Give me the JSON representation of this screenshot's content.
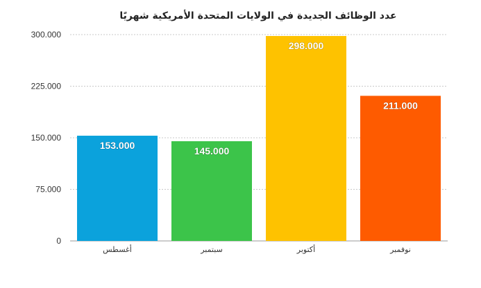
{
  "chart_data": {
    "type": "bar",
    "title": "عدد الوظائف الجديدة في الولايات المتحدة الأمريكية شهريًا",
    "xlabel": "",
    "ylabel": "",
    "categories": [
      "أغسطس",
      "سبتمبر",
      "أكتوبر",
      "نوفمبر"
    ],
    "values": [
      153000,
      145000,
      298000,
      211000
    ],
    "value_labels": [
      "153.000",
      "145.000",
      "298.000",
      "211.000"
    ],
    "colors": [
      "#0ba2dc",
      "#3cc44a",
      "#fec200",
      "#fe5b00"
    ],
    "ylim": [
      0,
      300000
    ],
    "yticks": [
      0,
      75000,
      150000,
      225000,
      300000
    ],
    "ytick_labels": [
      "0",
      "75.000",
      "150.000",
      "225.000",
      "300.000"
    ],
    "grid": true,
    "legend": "none"
  }
}
